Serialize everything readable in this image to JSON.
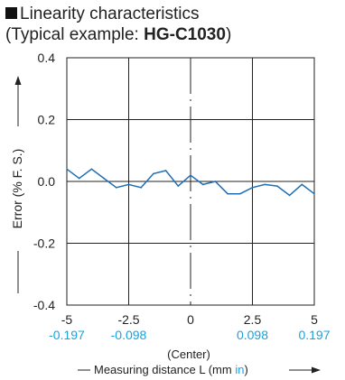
{
  "title": {
    "main": "Linearity characteristics",
    "sub_prefix": "(Typical example: ",
    "model": "HG-C1030",
    "sub_suffix": ")"
  },
  "colors": {
    "line": "#1f6fb4",
    "inch_text": "#17a3e0",
    "grid": "#222222",
    "text": "#222222"
  },
  "chart_data": {
    "type": "line",
    "ylabel": "Error (% F. S.)",
    "xlabel_prefix": "Measuring distance L (mm ",
    "xlabel_unit_alt": "in",
    "xlabel_suffix": ")",
    "center_label": "(Center)",
    "x_range": [
      -5,
      5
    ],
    "ylim": [
      -0.4,
      0.4
    ],
    "grid": true,
    "x_ticks": [
      {
        "value": -5,
        "label": "-5",
        "inch": "-0.197"
      },
      {
        "value": -2.5,
        "label": "-2.5",
        "inch": "-0.098"
      },
      {
        "value": 0,
        "label": "0",
        "inch": ""
      },
      {
        "value": 2.5,
        "label": "2.5",
        "inch": "0.098"
      },
      {
        "value": 5,
        "label": "5",
        "inch": "0.197"
      }
    ],
    "y_ticks": [
      {
        "value": 0.4,
        "label": "0.4"
      },
      {
        "value": 0.2,
        "label": "0.2"
      },
      {
        "value": 0.0,
        "label": "0.0"
      },
      {
        "value": -0.2,
        "label": "-0.2"
      },
      {
        "value": -0.4,
        "label": "-0.4"
      }
    ],
    "x": [
      -5,
      -4.5,
      -4,
      -3.5,
      -3,
      -2.5,
      -2,
      -1.5,
      -1,
      -0.5,
      0,
      0.5,
      1,
      1.5,
      2,
      2.5,
      3,
      3.5,
      4,
      4.5,
      5
    ],
    "y": [
      0.04,
      0.01,
      0.04,
      0.01,
      -0.02,
      -0.01,
      -0.02,
      0.025,
      0.035,
      -0.015,
      0.02,
      -0.01,
      0.0,
      -0.04,
      -0.04,
      -0.02,
      -0.01,
      -0.015,
      -0.045,
      -0.01,
      -0.04
    ]
  }
}
